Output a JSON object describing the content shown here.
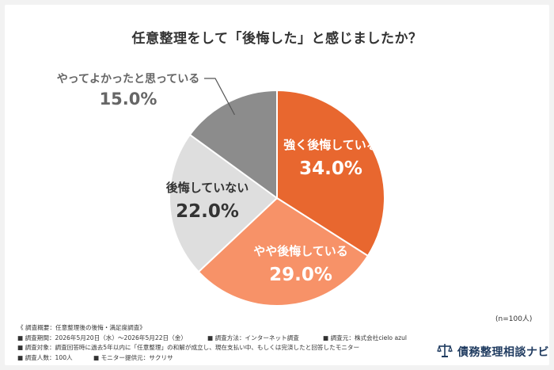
{
  "page": {
    "title": "任意整理をして「後悔した」と感じましたか？",
    "sample_size": "(n=100人)",
    "brand": "債務整理相談ナビ"
  },
  "notes": {
    "line1": "《 調査概要：任意整理後の後悔・満足度調査》",
    "line2a": "■ 調査期間：2026年5月20日（水）〜2026年5月22日（金）",
    "line2b": "■ 調査方法：インターネット調査",
    "line2c": "■ 調査元：株式会社cielo azul",
    "line3": "■ 調査対象：調査回答時に過去5年以内に「任意整理」の和解が成立し、現在支払い中、もしくは完済したと回答したモニター",
    "line4a": "■ 調査人数：100人",
    "line4b": "■ モニター提供元：サクリサ"
  },
  "chart_data": {
    "type": "pie",
    "title": "任意整理をして「後悔した」と感じましたか？",
    "categories": [
      "強く後悔している",
      "やや後悔している",
      "後悔していない",
      "やってよかったと思っている"
    ],
    "values": [
      34.0,
      29.0,
      22.0,
      15.0
    ],
    "value_labels": [
      "34.0%",
      "29.0%",
      "22.0%",
      "15.0%"
    ],
    "colors": [
      "#e8672f",
      "#f79268",
      "#dedede",
      "#8c8c8c"
    ],
    "label_colors": [
      "#ffffff",
      "#ffffff",
      "#333333",
      "#666666"
    ],
    "start": "12 o'clock",
    "direction": "clockwise",
    "legend": "none"
  }
}
